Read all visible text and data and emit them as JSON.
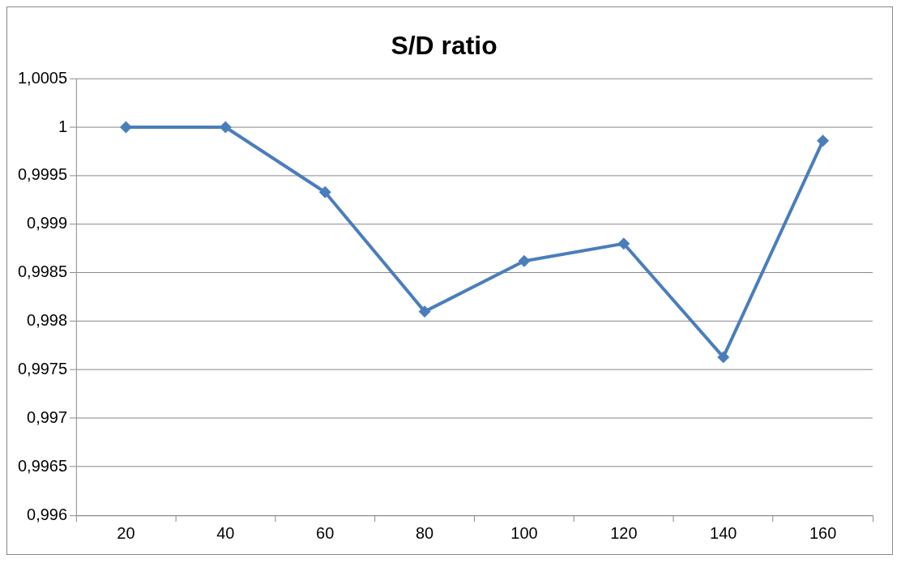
{
  "chart_data": {
    "type": "line",
    "title": "S/D ratio",
    "categories": [
      "20",
      "40",
      "60",
      "80",
      "100",
      "120",
      "140",
      "160"
    ],
    "series": [
      {
        "color": "#4a7ebb",
        "values": [
          1.0,
          1.0,
          0.99933,
          0.9981,
          0.99862,
          0.9988,
          0.99763,
          0.99986
        ]
      }
    ],
    "ylim": [
      0.996,
      1.0005
    ],
    "yticks": [
      {
        "value": 0.996,
        "label": "0,996"
      },
      {
        "value": 0.9965,
        "label": "0,9965"
      },
      {
        "value": 0.997,
        "label": "0,997"
      },
      {
        "value": 0.9975,
        "label": "0,9975"
      },
      {
        "value": 0.998,
        "label": "0,998"
      },
      {
        "value": 0.9985,
        "label": "0,9985"
      },
      {
        "value": 0.999,
        "label": "0,999"
      },
      {
        "value": 0.9995,
        "label": "0,9995"
      },
      {
        "value": 1,
        "label": "1"
      },
      {
        "value": 1.0005,
        "label": "1,0005"
      }
    ],
    "grid": "y",
    "legend": false,
    "marker": "diamond",
    "line_style": "solid"
  }
}
